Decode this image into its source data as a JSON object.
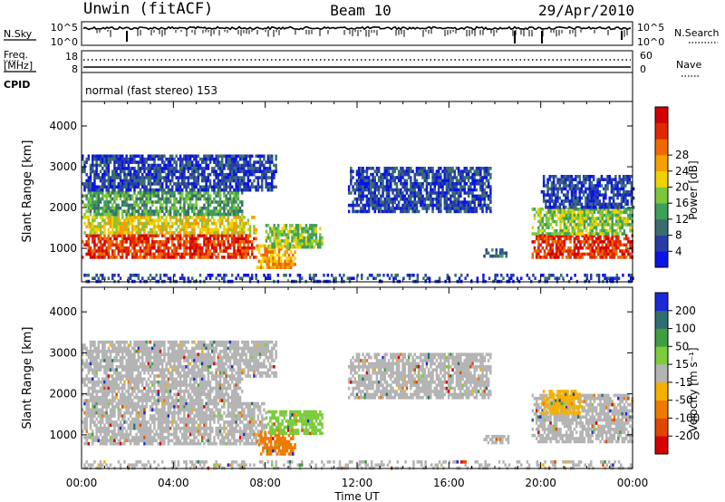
{
  "header": {
    "station": "Unwin  (fitACF)",
    "beam": "Beam 10",
    "date": "29/Apr/2010"
  },
  "noise_panel": {
    "left_label": "N.Sky",
    "right_label": "N.Search",
    "ticks_left": [
      "10^5",
      "10^0"
    ],
    "ticks_right": [
      "10^5",
      "10^0"
    ]
  },
  "freq_panel": {
    "left_label_1": "Freq.",
    "left_label_2": "[MHz]",
    "right_label": "Nave",
    "ticks_left": [
      "18",
      "8"
    ],
    "ticks_right": [
      "60",
      "0"
    ],
    "cpid_label": "CPID",
    "cpid_text": "normal (fast stereo) 153"
  },
  "chart_data": [
    {
      "type": "heatmap",
      "title": "",
      "xlabel": "Time UT",
      "ylabel": "Slant Range [km]",
      "xlim": [
        0,
        24
      ],
      "ylim": [
        180,
        4600
      ],
      "x_ticks": [
        "00:00",
        "04:00",
        "08:00",
        "12:00",
        "16:00",
        "20:00",
        "00:00"
      ],
      "y_ticks": [
        1000,
        2000,
        3000,
        4000
      ],
      "colorbar": {
        "label": "Power [dB]",
        "ticks": [
          "4",
          "8",
          "12",
          "16",
          "20",
          "24",
          "28"
        ],
        "colors": [
          "#0a14e6",
          "#283ca8",
          "#3a6e6e",
          "#3f9e5a",
          "#7cc83c",
          "#f0d200",
          "#f5a000",
          "#ee6a00",
          "#e02800",
          "#d40000"
        ]
      },
      "echo_regions": [
        {
          "t0": 0.0,
          "t1": 7.6,
          "r0": 820,
          "r1": 1350,
          "power_db": 26
        },
        {
          "t0": 0.0,
          "t1": 7.6,
          "r0": 1350,
          "r1": 1800,
          "power_db": 18
        },
        {
          "t0": 0.0,
          "t1": 7.0,
          "r0": 1800,
          "r1": 2400,
          "power_db": 10
        },
        {
          "t0": 0.0,
          "t1": 8.5,
          "r0": 2400,
          "r1": 3300,
          "power_db": 6
        },
        {
          "t0": 7.6,
          "t1": 9.3,
          "r0": 520,
          "r1": 1100,
          "power_db": 22
        },
        {
          "t0": 8.0,
          "t1": 10.5,
          "r0": 1000,
          "r1": 1600,
          "power_db": 14
        },
        {
          "t0": 11.6,
          "t1": 17.8,
          "r0": 1900,
          "r1": 3000,
          "power_db": 6
        },
        {
          "t0": 17.5,
          "t1": 18.6,
          "r0": 800,
          "r1": 1000,
          "power_db": 8
        },
        {
          "t0": 19.6,
          "t1": 24.0,
          "r0": 820,
          "r1": 1350,
          "power_db": 26
        },
        {
          "t0": 19.6,
          "t1": 24.0,
          "r0": 1350,
          "r1": 2000,
          "power_db": 15
        },
        {
          "t0": 20.0,
          "t1": 24.0,
          "r0": 2000,
          "r1": 2800,
          "power_db": 6
        },
        {
          "t0": 0.0,
          "t1": 24.0,
          "r0": 190,
          "r1": 380,
          "power_db": 4
        }
      ]
    },
    {
      "type": "heatmap",
      "title": "",
      "xlabel": "Time UT",
      "ylabel": "Slant Range [km]",
      "xlim": [
        0,
        24
      ],
      "ylim": [
        180,
        4600
      ],
      "x_ticks": [
        "00:00",
        "04:00",
        "08:00",
        "12:00",
        "16:00",
        "20:00",
        "00:00"
      ],
      "y_ticks": [
        1000,
        2000,
        3000,
        4000
      ],
      "colorbar": {
        "label": "Velocity [m s⁻¹]",
        "ticks": [
          "200",
          "100",
          "50",
          "15",
          "-15",
          "-50",
          "-100",
          "-200"
        ],
        "colors": [
          "#1a2ad8",
          "#2f6e6e",
          "#3f9e3f",
          "#7ccc3c",
          "#b4b4b4",
          "#f5b000",
          "#ee7a00",
          "#e04800",
          "#d60000"
        ]
      },
      "echo_regions": [
        {
          "t0": 0.0,
          "t1": 8.0,
          "r0": 820,
          "r1": 1800,
          "velocity": 0
        },
        {
          "t0": 0.0,
          "t1": 7.0,
          "r0": 1800,
          "r1": 2400,
          "velocity": 0
        },
        {
          "t0": 0.0,
          "t1": 8.5,
          "r0": 2400,
          "r1": 3300,
          "velocity": -5
        },
        {
          "t0": 7.6,
          "t1": 9.3,
          "r0": 520,
          "r1": 1100,
          "velocity": -40
        },
        {
          "t0": 8.0,
          "t1": 10.5,
          "r0": 1000,
          "r1": 1600,
          "velocity": 20
        },
        {
          "t0": 11.6,
          "t1": 17.8,
          "r0": 1900,
          "r1": 3000,
          "velocity": 0
        },
        {
          "t0": 17.5,
          "t1": 18.6,
          "r0": 800,
          "r1": 1000,
          "velocity": 0
        },
        {
          "t0": 19.6,
          "t1": 24.0,
          "r0": 820,
          "r1": 2000,
          "velocity": 0
        },
        {
          "t0": 20.0,
          "t1": 21.8,
          "r0": 1500,
          "r1": 2100,
          "velocity": -30
        },
        {
          "t0": 0.0,
          "t1": 24.0,
          "r0": 190,
          "r1": 380,
          "velocity": 10
        }
      ]
    }
  ]
}
